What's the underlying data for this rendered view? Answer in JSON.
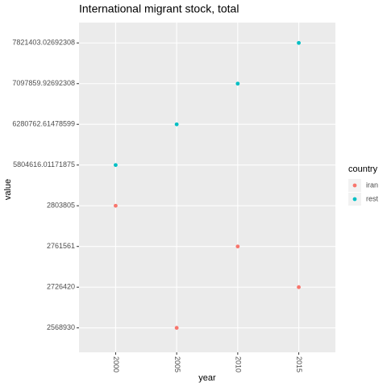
{
  "chart_data": {
    "type": "scatter",
    "title": "International migrant stock, total",
    "x_label": "year",
    "y_label": "value",
    "categories": [
      "2000",
      "2005",
      "2010",
      "2015"
    ],
    "yticks": [
      2568930,
      2726420,
      2761561,
      2803805,
      5804616.01171875,
      6280762.61478599,
      7097859.92692308,
      7821403.02692308
    ],
    "legend_title": "country",
    "legend_position": "right",
    "grid": true,
    "series": [
      {
        "name": "iran",
        "color": "#F8766D",
        "values": [
          2803805,
          2568930,
          2761561,
          2726420
        ]
      },
      {
        "name": "rest",
        "color": "#00BFC4",
        "values": [
          5804616.01171875,
          6280762.61478599,
          7097859.92692308,
          7821403.02692308
        ]
      }
    ]
  }
}
